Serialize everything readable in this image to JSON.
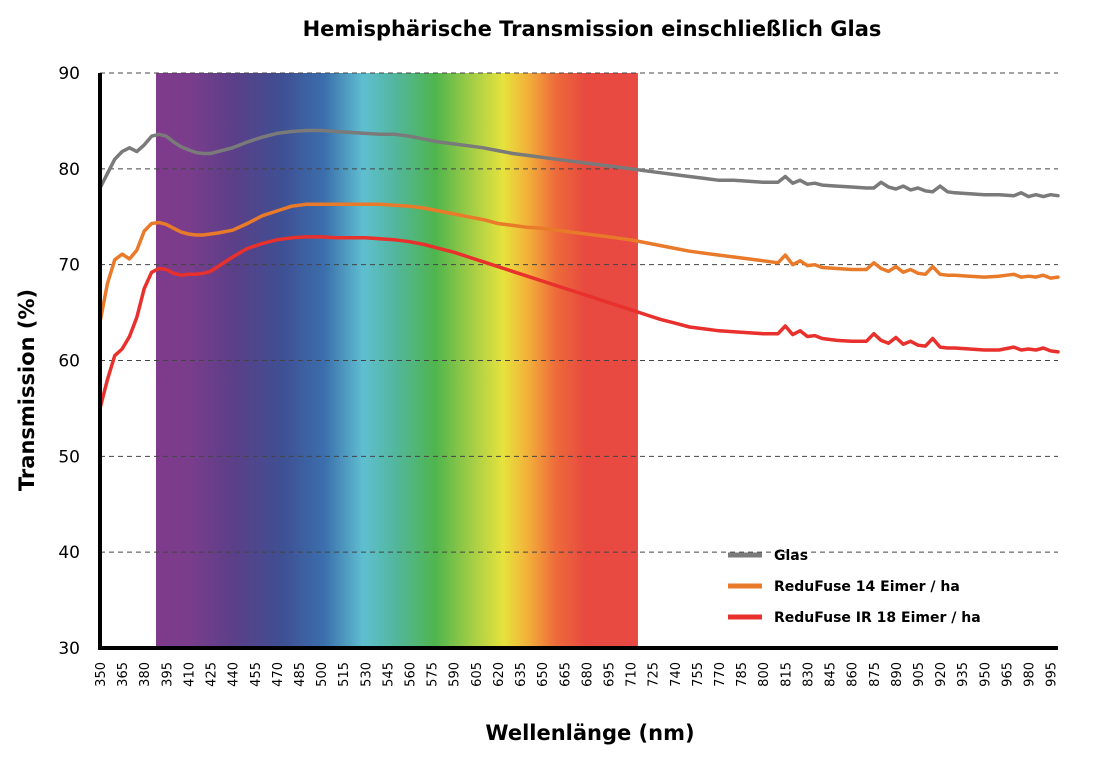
{
  "chart_data": {
    "type": "line",
    "title": "Hemisphärische Transmission einschließlich Glas",
    "xlabel": "Wellenlänge (nm)",
    "ylabel": "Transmission (%)",
    "ylim": [
      30,
      90
    ],
    "xlim": [
      350,
      1000
    ],
    "yticks": [
      90,
      80,
      70,
      60,
      50,
      40,
      30
    ],
    "xticks": [
      350,
      365,
      380,
      395,
      410,
      425,
      440,
      455,
      470,
      485,
      500,
      515,
      530,
      545,
      560,
      575,
      590,
      605,
      620,
      635,
      650,
      665,
      680,
      695,
      710,
      725,
      740,
      755,
      770,
      785,
      800,
      815,
      830,
      845,
      860,
      875,
      890,
      905,
      920,
      935,
      950,
      965,
      980,
      995
    ],
    "grid": "horizontal dashed",
    "legend_position": "bottom-right",
    "spectrum_band": [
      388,
      715
    ],
    "series": [
      {
        "name": "Glas",
        "color": "#7a7a7a",
        "x": [
          350,
          355,
          360,
          365,
          370,
          375,
          380,
          385,
          390,
          395,
          400,
          405,
          410,
          415,
          420,
          425,
          430,
          440,
          450,
          460,
          470,
          480,
          490,
          500,
          510,
          520,
          530,
          540,
          550,
          560,
          570,
          580,
          590,
          600,
          610,
          620,
          630,
          640,
          650,
          660,
          670,
          680,
          690,
          700,
          710,
          720,
          730,
          740,
          750,
          760,
          770,
          780,
          790,
          800,
          810,
          815,
          820,
          825,
          830,
          835,
          840,
          850,
          860,
          870,
          875,
          880,
          885,
          890,
          895,
          900,
          905,
          910,
          915,
          920,
          925,
          930,
          940,
          950,
          960,
          970,
          975,
          980,
          985,
          990,
          995,
          1000
        ],
        "y": [
          78,
          79.5,
          81,
          81.8,
          82.2,
          81.8,
          82.5,
          83.4,
          83.6,
          83.4,
          82.8,
          82.3,
          82,
          81.7,
          81.6,
          81.6,
          81.8,
          82.2,
          82.8,
          83.3,
          83.7,
          83.9,
          84,
          84,
          83.9,
          83.8,
          83.7,
          83.6,
          83.6,
          83.4,
          83.1,
          82.8,
          82.6,
          82.4,
          82.2,
          81.9,
          81.6,
          81.4,
          81.2,
          81,
          80.8,
          80.6,
          80.4,
          80.2,
          80,
          79.8,
          79.6,
          79.4,
          79.2,
          79,
          78.8,
          78.8,
          78.7,
          78.6,
          78.6,
          79.2,
          78.5,
          78.8,
          78.4,
          78.5,
          78.3,
          78.2,
          78.1,
          78,
          78,
          78.6,
          78.1,
          77.9,
          78.2,
          77.8,
          78,
          77.7,
          77.6,
          78.2,
          77.6,
          77.5,
          77.4,
          77.3,
          77.3,
          77.2,
          77.5,
          77.1,
          77.3,
          77.1,
          77.3,
          77.2
        ]
      },
      {
        "name": "ReduFuse 14 Eimer / ha",
        "color": "#e87a2a",
        "x": [
          350,
          355,
          360,
          365,
          370,
          375,
          380,
          385,
          390,
          395,
          400,
          405,
          410,
          415,
          420,
          425,
          430,
          440,
          450,
          460,
          470,
          480,
          490,
          500,
          510,
          520,
          530,
          540,
          550,
          560,
          570,
          580,
          590,
          600,
          610,
          620,
          630,
          640,
          650,
          660,
          670,
          680,
          690,
          700,
          710,
          720,
          730,
          740,
          750,
          760,
          770,
          780,
          790,
          800,
          810,
          815,
          820,
          825,
          830,
          835,
          840,
          850,
          860,
          870,
          875,
          880,
          885,
          890,
          895,
          900,
          905,
          910,
          915,
          920,
          925,
          930,
          940,
          950,
          960,
          970,
          975,
          980,
          985,
          990,
          995,
          1000
        ],
        "y": [
          64,
          68,
          70.5,
          71.1,
          70.6,
          71.5,
          73.5,
          74.3,
          74.4,
          74.2,
          73.8,
          73.4,
          73.2,
          73.1,
          73.1,
          73.2,
          73.3,
          73.6,
          74.3,
          75.1,
          75.6,
          76.1,
          76.3,
          76.3,
          76.3,
          76.3,
          76.3,
          76.3,
          76.2,
          76.1,
          75.9,
          75.6,
          75.3,
          75,
          74.7,
          74.3,
          74.1,
          73.9,
          73.8,
          73.6,
          73.4,
          73.2,
          73,
          72.8,
          72.6,
          72.3,
          72,
          71.7,
          71.4,
          71.2,
          71,
          70.8,
          70.6,
          70.4,
          70.2,
          71,
          70,
          70.4,
          69.9,
          70,
          69.7,
          69.6,
          69.5,
          69.5,
          70.2,
          69.6,
          69.3,
          69.8,
          69.2,
          69.5,
          69.1,
          69,
          69.8,
          69,
          68.9,
          68.9,
          68.8,
          68.7,
          68.8,
          69,
          68.7,
          68.8,
          68.7,
          68.9,
          68.6,
          68.7
        ]
      },
      {
        "name": "ReduFuse IR 18 Eimer / ha",
        "color": "#e8302c",
        "x": [
          350,
          355,
          360,
          365,
          370,
          375,
          380,
          385,
          390,
          395,
          400,
          405,
          410,
          415,
          420,
          425,
          430,
          440,
          450,
          460,
          470,
          480,
          490,
          500,
          510,
          520,
          530,
          540,
          550,
          560,
          570,
          580,
          590,
          600,
          610,
          620,
          630,
          640,
          650,
          660,
          670,
          680,
          690,
          700,
          710,
          720,
          730,
          740,
          750,
          760,
          770,
          780,
          790,
          800,
          810,
          815,
          820,
          825,
          830,
          835,
          840,
          850,
          860,
          870,
          875,
          880,
          885,
          890,
          895,
          900,
          905,
          910,
          915,
          920,
          925,
          930,
          940,
          950,
          960,
          970,
          975,
          980,
          985,
          990,
          995,
          1000
        ],
        "y": [
          55,
          58,
          60.5,
          61.2,
          62.5,
          64.5,
          67.5,
          69.2,
          69.6,
          69.5,
          69.1,
          68.9,
          69,
          69,
          69.1,
          69.3,
          69.8,
          70.8,
          71.7,
          72.2,
          72.6,
          72.8,
          72.9,
          72.9,
          72.8,
          72.8,
          72.8,
          72.7,
          72.6,
          72.4,
          72.1,
          71.7,
          71.3,
          70.8,
          70.3,
          69.8,
          69.3,
          68.8,
          68.3,
          67.8,
          67.3,
          66.8,
          66.3,
          65.8,
          65.3,
          64.8,
          64.3,
          63.9,
          63.5,
          63.3,
          63.1,
          63,
          62.9,
          62.8,
          62.8,
          63.6,
          62.7,
          63.1,
          62.5,
          62.6,
          62.3,
          62.1,
          62,
          62,
          62.8,
          62.1,
          61.8,
          62.4,
          61.7,
          62,
          61.6,
          61.5,
          62.3,
          61.4,
          61.3,
          61.3,
          61.2,
          61.1,
          61.1,
          61.4,
          61.1,
          61.2,
          61.1,
          61.3,
          61,
          60.9
        ]
      }
    ]
  }
}
